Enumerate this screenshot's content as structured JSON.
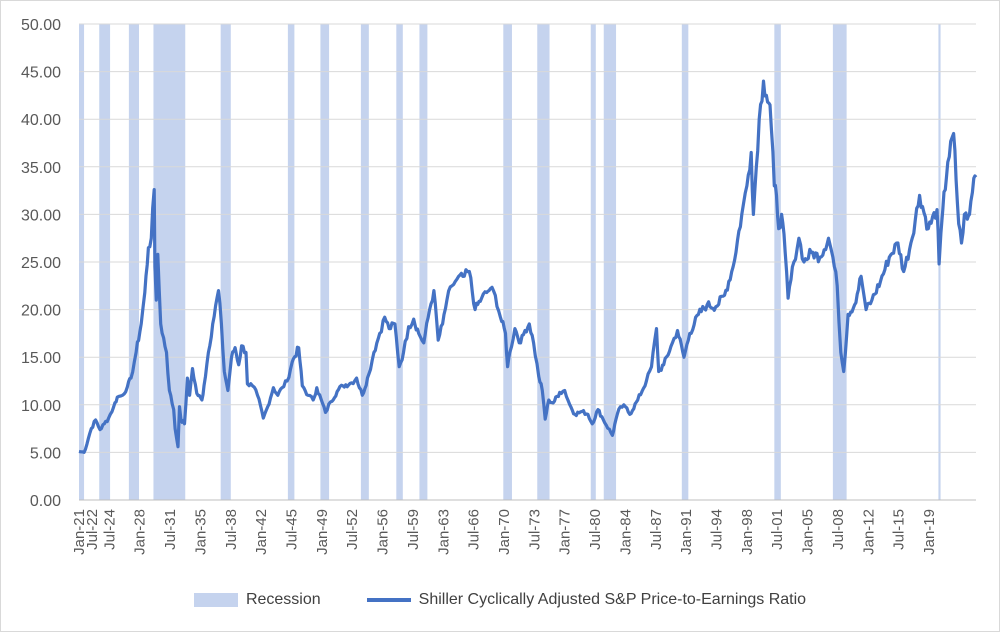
{
  "chart_data": {
    "type": "line",
    "title": "",
    "xlabel": "",
    "ylabel": "",
    "ylim": [
      0,
      50
    ],
    "x_range": [
      "1921-01",
      "2024-06"
    ],
    "grid": true,
    "legend_position": "bottom",
    "y_ticks": [
      "0.00",
      "5.00",
      "10.00",
      "15.00",
      "20.00",
      "25.00",
      "30.00",
      "35.00",
      "40.00",
      "45.00",
      "50.00"
    ],
    "x_ticks": [
      "Jan-21",
      "Jul-24",
      "Jan-28",
      "Jul-31",
      "Jan-35",
      "Jul-38",
      "Jan-42",
      "Jul-45",
      "Jan-49",
      "Jul-52",
      "Jan-56",
      "Jul-59",
      "Jan-63",
      "Jul-66",
      "Jan-70",
      "Jul-73",
      "Jan-77",
      "Jul-80",
      "Jan-84",
      "Jul-87",
      "Jan-91",
      "Jul-94",
      "Jan-98",
      "Jul-01",
      "Jan-05",
      "Jul-08",
      "Jan-12",
      "Jul-15",
      "Jan-19",
      "Jul-22"
    ],
    "recession_series": {
      "name": "Recession",
      "color": "#c5d3ee",
      "periods": [
        [
          "1921-01",
          "1921-07"
        ],
        [
          "1923-05",
          "1924-07"
        ],
        [
          "1926-10",
          "1927-11"
        ],
        [
          "1929-08",
          "1933-03"
        ],
        [
          "1937-05",
          "1938-06"
        ],
        [
          "1945-02",
          "1945-10"
        ],
        [
          "1948-11",
          "1949-10"
        ],
        [
          "1953-07",
          "1954-05"
        ],
        [
          "1957-08",
          "1958-04"
        ],
        [
          "1960-04",
          "1961-02"
        ],
        [
          "1969-12",
          "1970-11"
        ],
        [
          "1973-11",
          "1975-03"
        ],
        [
          "1980-01",
          "1980-07"
        ],
        [
          "1981-07",
          "1982-11"
        ],
        [
          "1990-07",
          "1991-03"
        ],
        [
          "2001-03",
          "2001-11"
        ],
        [
          "2007-12",
          "2009-06"
        ],
        [
          "2020-02",
          "2020-04"
        ]
      ]
    },
    "series": [
      {
        "name": "Shiller Cyclically Adjusted S&P Price-to-Earnings Ratio",
        "color": "#4472c4",
        "points": [
          [
            "1921-01",
            5.1
          ],
          [
            "1921-08",
            5.0
          ],
          [
            "1922-06",
            7.5
          ],
          [
            "1922-12",
            8.4
          ],
          [
            "1923-06",
            7.4
          ],
          [
            "1923-12",
            8.0
          ],
          [
            "1924-06",
            8.6
          ],
          [
            "1925-01",
            9.8
          ],
          [
            "1925-06",
            10.8
          ],
          [
            "1926-01",
            11.0
          ],
          [
            "1926-08",
            11.9
          ],
          [
            "1927-01",
            12.8
          ],
          [
            "1927-08",
            15.5
          ],
          [
            "1928-03",
            18.5
          ],
          [
            "1928-08",
            21.8
          ],
          [
            "1929-01",
            26.5
          ],
          [
            "1929-05",
            27.5
          ],
          [
            "1929-09",
            32.6
          ],
          [
            "1929-10",
            24.5
          ],
          [
            "1929-12",
            21.0
          ],
          [
            "1930-02",
            25.8
          ],
          [
            "1930-06",
            18.5
          ],
          [
            "1931-02",
            15.5
          ],
          [
            "1931-06",
            11.5
          ],
          [
            "1931-12",
            9.5
          ],
          [
            "1932-02",
            7.5
          ],
          [
            "1932-06",
            5.6
          ],
          [
            "1932-08",
            9.8
          ],
          [
            "1932-10",
            8.5
          ],
          [
            "1933-03",
            8.0
          ],
          [
            "1933-07",
            12.8
          ],
          [
            "1933-10",
            11.0
          ],
          [
            "1934-02",
            13.8
          ],
          [
            "1934-08",
            11.2
          ],
          [
            "1935-03",
            10.5
          ],
          [
            "1935-06",
            12.0
          ],
          [
            "1935-12",
            15.5
          ],
          [
            "1936-06",
            18.5
          ],
          [
            "1937-02",
            22.0
          ],
          [
            "1937-06",
            18.5
          ],
          [
            "1937-10",
            13.5
          ],
          [
            "1938-03",
            11.5
          ],
          [
            "1938-08",
            15.0
          ],
          [
            "1939-01",
            16.0
          ],
          [
            "1939-06",
            14.2
          ],
          [
            "1939-10",
            16.2
          ],
          [
            "1940-04",
            15.5
          ],
          [
            "1940-06",
            12.2
          ],
          [
            "1941-01",
            12.0
          ],
          [
            "1941-08",
            11.0
          ],
          [
            "1942-04",
            8.6
          ],
          [
            "1942-10",
            9.8
          ],
          [
            "1943-06",
            11.8
          ],
          [
            "1943-12",
            11.0
          ],
          [
            "1944-06",
            11.8
          ],
          [
            "1945-01",
            12.5
          ],
          [
            "1945-08",
            14.5
          ],
          [
            "1946-05",
            16.0
          ],
          [
            "1946-10",
            12.0
          ],
          [
            "1947-06",
            11.0
          ],
          [
            "1948-01",
            10.5
          ],
          [
            "1948-06",
            11.8
          ],
          [
            "1949-06",
            9.2
          ],
          [
            "1950-01",
            10.3
          ],
          [
            "1950-12",
            11.6
          ],
          [
            "1951-06",
            12.0
          ],
          [
            "1952-06",
            12.3
          ],
          [
            "1953-01",
            12.8
          ],
          [
            "1953-09",
            11.0
          ],
          [
            "1954-06",
            13.2
          ],
          [
            "1955-01",
            15.5
          ],
          [
            "1955-09",
            17.5
          ],
          [
            "1956-04",
            19.2
          ],
          [
            "1956-10",
            18.0
          ],
          [
            "1957-06",
            18.5
          ],
          [
            "1957-12",
            14.0
          ],
          [
            "1958-06",
            15.5
          ],
          [
            "1959-01",
            18.2
          ],
          [
            "1959-08",
            19.0
          ],
          [
            "1960-03",
            17.5
          ],
          [
            "1960-10",
            16.5
          ],
          [
            "1961-06",
            20.0
          ],
          [
            "1961-12",
            22.0
          ],
          [
            "1962-06",
            16.8
          ],
          [
            "1962-12",
            18.5
          ],
          [
            "1963-06",
            21.0
          ],
          [
            "1964-01",
            22.5
          ],
          [
            "1964-08",
            23.2
          ],
          [
            "1965-06",
            23.5
          ],
          [
            "1966-01",
            24.0
          ],
          [
            "1966-09",
            20.0
          ],
          [
            "1967-06",
            21.2
          ],
          [
            "1968-01",
            21.8
          ],
          [
            "1968-06",
            22.2
          ],
          [
            "1969-01",
            21.5
          ],
          [
            "1969-08",
            19.2
          ],
          [
            "1970-03",
            17.5
          ],
          [
            "1970-06",
            14.0
          ],
          [
            "1970-09",
            15.5
          ],
          [
            "1971-04",
            18.0
          ],
          [
            "1971-12",
            16.5
          ],
          [
            "1972-06",
            17.8
          ],
          [
            "1972-12",
            18.5
          ],
          [
            "1973-06",
            16.5
          ],
          [
            "1974-01",
            13.0
          ],
          [
            "1974-06",
            11.5
          ],
          [
            "1974-10",
            8.5
          ],
          [
            "1975-03",
            10.5
          ],
          [
            "1975-09",
            10.2
          ],
          [
            "1976-06",
            11.3
          ],
          [
            "1977-01",
            11.5
          ],
          [
            "1977-08",
            10.0
          ],
          [
            "1978-03",
            9.0
          ],
          [
            "1979-01",
            9.3
          ],
          [
            "1979-09",
            9.0
          ],
          [
            "1980-03",
            8.0
          ],
          [
            "1980-11",
            9.5
          ],
          [
            "1981-06",
            8.5
          ],
          [
            "1982-07",
            6.8
          ],
          [
            "1982-12",
            8.5
          ],
          [
            "1983-06",
            9.8
          ],
          [
            "1984-01",
            9.8
          ],
          [
            "1984-07",
            9.0
          ],
          [
            "1985-06",
            10.5
          ],
          [
            "1986-06",
            12.5
          ],
          [
            "1987-01",
            14.0
          ],
          [
            "1987-08",
            18.0
          ],
          [
            "1987-11",
            13.5
          ],
          [
            "1988-06",
            14.2
          ],
          [
            "1989-06",
            16.5
          ],
          [
            "1990-01",
            17.8
          ],
          [
            "1990-10",
            15.0
          ],
          [
            "1991-06",
            17.5
          ],
          [
            "1992-06",
            19.5
          ],
          [
            "1993-06",
            20.5
          ],
          [
            "1994-06",
            20.3
          ],
          [
            "1995-06",
            21.5
          ],
          [
            "1996-06",
            24.5
          ],
          [
            "1997-06",
            30.0
          ],
          [
            "1998-01",
            33.0
          ],
          [
            "1998-07",
            36.5
          ],
          [
            "1998-10",
            30.0
          ],
          [
            "1999-06",
            40.0
          ],
          [
            "1999-12",
            44.0
          ],
          [
            "2000-04",
            42.5
          ],
          [
            "2000-09",
            41.5
          ],
          [
            "2001-03",
            33.0
          ],
          [
            "2001-06",
            32.0
          ],
          [
            "2001-09",
            28.5
          ],
          [
            "2002-01",
            30.0
          ],
          [
            "2002-06",
            26.0
          ],
          [
            "2002-10",
            21.2
          ],
          [
            "2003-06",
            25.0
          ],
          [
            "2004-01",
            27.5
          ],
          [
            "2004-08",
            25.0
          ],
          [
            "2005-06",
            26.0
          ],
          [
            "2006-06",
            25.5
          ],
          [
            "2007-06",
            27.5
          ],
          [
            "2007-12",
            25.5
          ],
          [
            "2008-06",
            22.5
          ],
          [
            "2008-11",
            15.5
          ],
          [
            "2009-03",
            13.5
          ],
          [
            "2009-09",
            19.5
          ],
          [
            "2010-06",
            20.5
          ],
          [
            "2011-03",
            23.5
          ],
          [
            "2011-10",
            20.0
          ],
          [
            "2012-06",
            21.0
          ],
          [
            "2013-06",
            23.0
          ],
          [
            "2014-06",
            25.5
          ],
          [
            "2015-06",
            27.0
          ],
          [
            "2016-02",
            24.0
          ],
          [
            "2016-12",
            27.0
          ],
          [
            "2017-12",
            32.0
          ],
          [
            "2018-12",
            28.5
          ],
          [
            "2019-12",
            30.5
          ],
          [
            "2020-03",
            24.8
          ],
          [
            "2020-08",
            30.5
          ],
          [
            "2021-03",
            35.5
          ],
          [
            "2021-11",
            38.5
          ],
          [
            "2022-06",
            29.0
          ],
          [
            "2022-10",
            27.0
          ],
          [
            "2023-02",
            30.0
          ],
          [
            "2023-06",
            29.5
          ],
          [
            "2023-09",
            30.0
          ],
          [
            "2024-03",
            33.8
          ],
          [
            "2024-06",
            33.9
          ]
        ]
      }
    ]
  }
}
